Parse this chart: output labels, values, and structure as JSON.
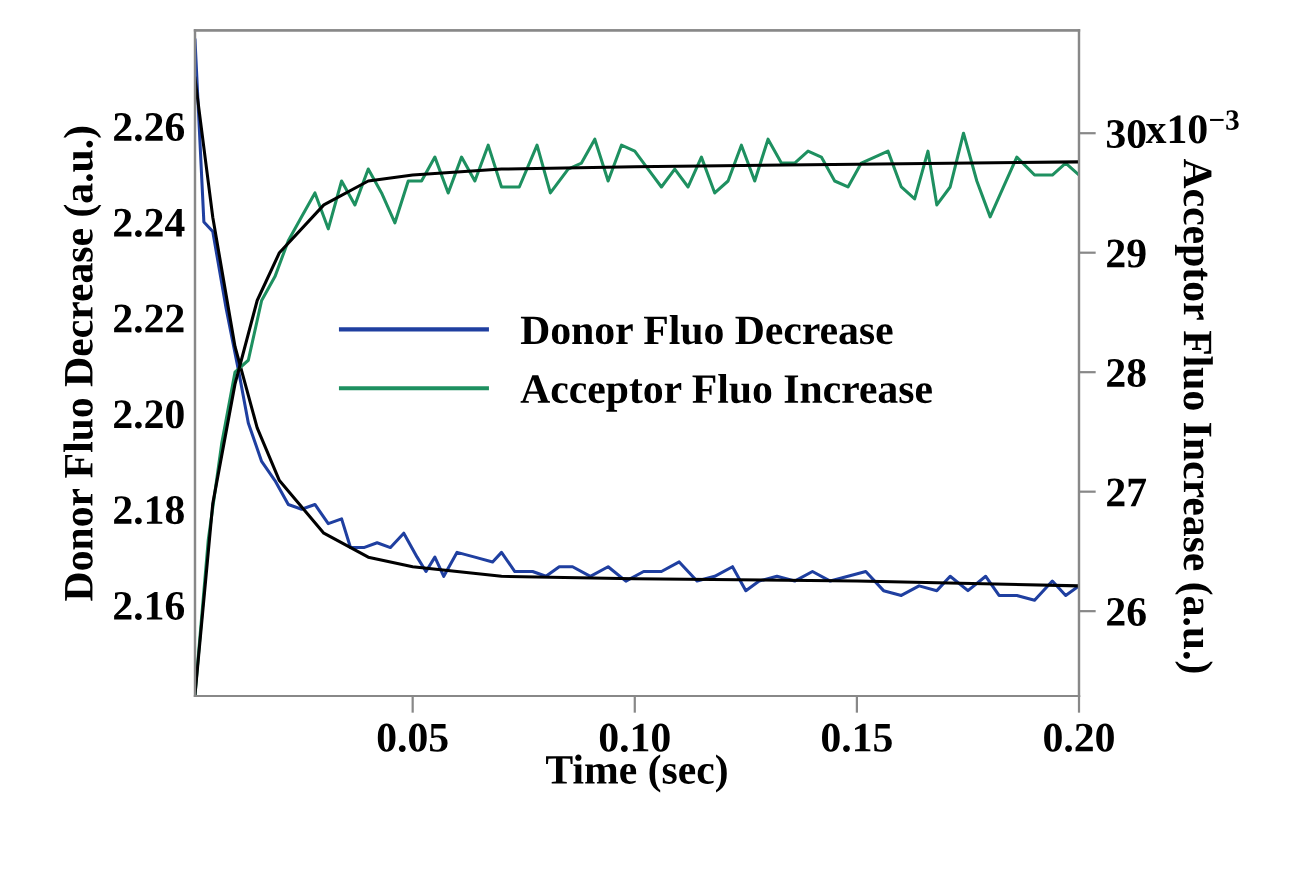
{
  "chart_data": {
    "type": "line",
    "xlabel": "Time (sec)",
    "ylabel": "Donor Fluo Decrease (a.u.)",
    "y2label": "Acceptor Fluo Increase (a.u.)",
    "annotations": [
      "x10$^{−3}$"
    ],
    "xlim": [
      0.001,
      0.2
    ],
    "xticks": [
      0.05,
      {
        "value": 0.1,
        "label": "0.10"
      },
      0.15,
      {
        "value": 0.2,
        "label": "0.20"
      }
    ],
    "ylim": [
      2.141,
      2.28
    ],
    "yticks": [
      2.16,
      2.18,
      {
        "value": 2.2,
        "label": "2.20"
      },
      2.22,
      2.24,
      2.26
    ],
    "y2lim": [
      25.29,
      30.86
    ],
    "y2ticks": [
      26,
      27,
      28,
      29,
      30
    ],
    "legend": "center",
    "grid": false,
    "marker": "none",
    "line_style": "solid",
    "series": [
      {
        "name": "Donor Fluo Decrease",
        "color": "#1f3fa0",
        "x": [
          0.001,
          0.003,
          0.005,
          0.008,
          0.011,
          0.013,
          0.016,
          0.019,
          0.022,
          0.025,
          0.028,
          0.031,
          0.034,
          0.036,
          0.039,
          0.042,
          0.045,
          0.048,
          0.051,
          0.053,
          0.055,
          0.057,
          0.06,
          0.064,
          0.068,
          0.07,
          0.073,
          0.077,
          0.08,
          0.083,
          0.086,
          0.09,
          0.094,
          0.098,
          0.102,
          0.106,
          0.11,
          0.114,
          0.118,
          0.122,
          0.125,
          0.128,
          0.132,
          0.136,
          0.14,
          0.144,
          0.148,
          0.152,
          0.156,
          0.16,
          0.164,
          0.168,
          0.171,
          0.175,
          0.179,
          0.182,
          0.186,
          0.19,
          0.194,
          0.197,
          0.2
        ],
        "values": [
          2.278,
          2.24,
          2.238,
          2.222,
          2.208,
          2.198,
          2.19,
          2.186,
          2.181,
          2.18,
          2.181,
          2.177,
          2.178,
          2.172,
          2.172,
          2.173,
          2.172,
          2.175,
          2.17,
          2.167,
          2.17,
          2.166,
          2.171,
          2.17,
          2.169,
          2.171,
          2.167,
          2.167,
          2.166,
          2.168,
          2.168,
          2.166,
          2.168,
          2.165,
          2.167,
          2.167,
          2.169,
          2.165,
          2.166,
          2.168,
          2.163,
          2.165,
          2.166,
          2.165,
          2.167,
          2.165,
          2.166,
          2.167,
          2.163,
          2.162,
          2.164,
          2.163,
          2.166,
          2.163,
          2.166,
          2.162,
          2.162,
          2.161,
          2.165,
          2.162,
          2.164
        ]
      },
      {
        "name": "Acceptor Fluo Increase",
        "color": "#1e9060",
        "axis": "y2",
        "x": [
          0.001,
          0.004,
          0.007,
          0.01,
          0.013,
          0.016,
          0.019,
          0.022,
          0.025,
          0.028,
          0.031,
          0.034,
          0.037,
          0.04,
          0.043,
          0.046,
          0.049,
          0.052,
          0.055,
          0.058,
          0.061,
          0.064,
          0.067,
          0.07,
          0.074,
          0.078,
          0.081,
          0.085,
          0.088,
          0.091,
          0.094,
          0.097,
          0.1,
          0.103,
          0.106,
          0.109,
          0.112,
          0.115,
          0.118,
          0.121,
          0.124,
          0.127,
          0.13,
          0.133,
          0.136,
          0.139,
          0.142,
          0.145,
          0.148,
          0.151,
          0.154,
          0.157,
          0.16,
          0.163,
          0.166,
          0.168,
          0.171,
          0.174,
          0.177,
          0.18,
          0.183,
          0.186,
          0.19,
          0.194,
          0.197,
          0.2
        ],
        "values": [
          25.3,
          26.6,
          27.4,
          28.0,
          28.1,
          28.6,
          28.8,
          29.1,
          29.3,
          29.5,
          29.2,
          29.6,
          29.4,
          29.7,
          29.5,
          29.25,
          29.6,
          29.6,
          29.8,
          29.5,
          29.8,
          29.6,
          29.9,
          29.55,
          29.55,
          29.9,
          29.5,
          29.7,
          29.75,
          29.95,
          29.6,
          29.9,
          29.85,
          29.7,
          29.55,
          29.7,
          29.55,
          29.8,
          29.5,
          29.6,
          29.9,
          29.6,
          29.95,
          29.75,
          29.75,
          29.85,
          29.8,
          29.6,
          29.55,
          29.75,
          29.8,
          29.85,
          29.55,
          29.45,
          29.85,
          29.4,
          29.55,
          30.0,
          29.6,
          29.3,
          29.55,
          29.8,
          29.65,
          29.65,
          29.75,
          29.65
        ]
      },
      {
        "color": "#000000",
        "x": [
          0.001,
          0.005,
          0.01,
          0.015,
          0.02,
          0.03,
          0.04,
          0.05,
          0.07,
          0.1,
          0.15,
          0.2
        ],
        "values": [
          2.27,
          2.241,
          2.214,
          2.197,
          2.186,
          2.175,
          2.17,
          2.168,
          2.166,
          2.1655,
          2.165,
          2.164
        ]
      },
      {
        "color": "#000000",
        "axis": "y2",
        "x": [
          0.001,
          0.005,
          0.01,
          0.015,
          0.02,
          0.03,
          0.04,
          0.05,
          0.07,
          0.1,
          0.15,
          0.2
        ],
        "values": [
          25.3,
          26.9,
          27.9,
          28.6,
          29.0,
          29.4,
          29.6,
          29.65,
          29.7,
          29.72,
          29.74,
          29.76
        ]
      }
    ]
  }
}
